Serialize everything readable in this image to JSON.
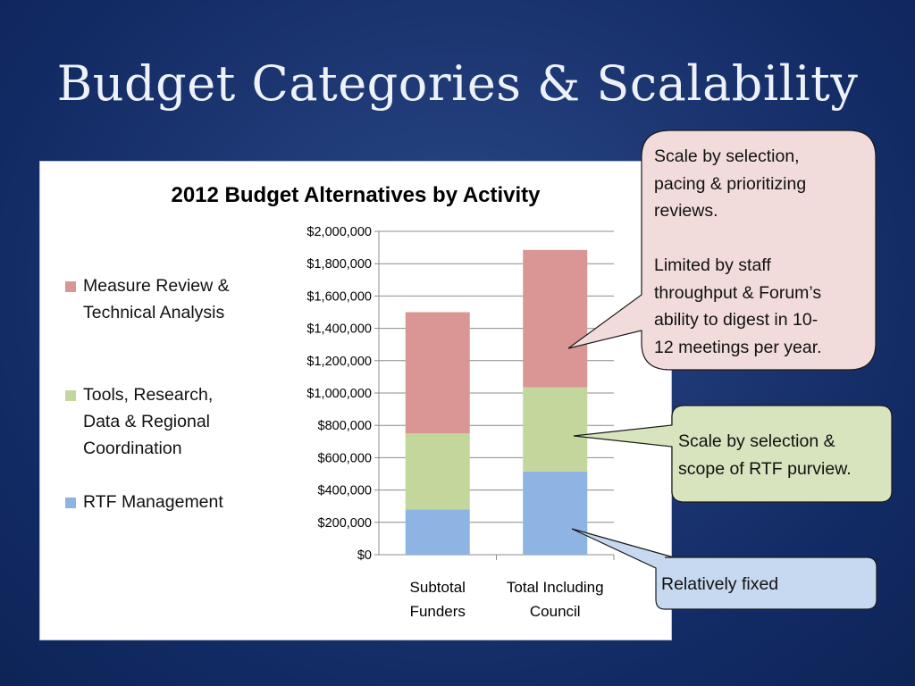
{
  "slide": {
    "title": "Budget Categories & Scalability"
  },
  "chart_data": {
    "type": "bar",
    "stacked": true,
    "title": "2012 Budget Alternatives by Activity",
    "categories": [
      "Subtotal Funders",
      "Total Including Council"
    ],
    "category_lines": [
      [
        "Subtotal",
        "Funders"
      ],
      [
        "Total Including",
        "Council"
      ]
    ],
    "series": [
      {
        "name": "RTF Management",
        "color": "#8eb4e3",
        "values": [
          280000,
          515000
        ]
      },
      {
        "name": "Tools, Research, Data & Regional Coordination",
        "color": "#c3d69b",
        "values": [
          470000,
          520000
        ]
      },
      {
        "name": "Measure Review & Technical Analysis",
        "color": "#d99694",
        "values": [
          750000,
          850000
        ]
      }
    ],
    "ylim": [
      0,
      2000000
    ],
    "yticks": [
      "$0",
      "$200,000",
      "$400,000",
      "$600,000",
      "$800,000",
      "$1,000,000",
      "$1,200,000",
      "$1,400,000",
      "$1,600,000",
      "$1,800,000",
      "$2,000,000"
    ],
    "grid": true,
    "legend_position": "left",
    "legend": [
      {
        "label_lines": [
          "Measure Review &",
          "Technical Analysis"
        ],
        "color": "#d99694"
      },
      {
        "label_lines": [
          "Tools, Research,",
          "Data & Regional",
          "Coordination"
        ],
        "color": "#c3d69b"
      },
      {
        "label_lines": [
          "RTF Management"
        ],
        "color": "#8eb4e3"
      }
    ]
  },
  "callouts": {
    "measure_review": "Scale by selection,\npacing & prioritizing\nreviews.\n\nLimited by staff\nthroughput & Forum’s\nability to digest in 10-\n12 meetings per year.",
    "tools_research": "Scale by selection &\nscope of RTF purview.",
    "rtf_management": "Relatively fixed"
  },
  "colors": {
    "callout_pink": "#f2dcdb",
    "callout_green": "#d7e4bd",
    "callout_blue": "#c6d9f1"
  }
}
